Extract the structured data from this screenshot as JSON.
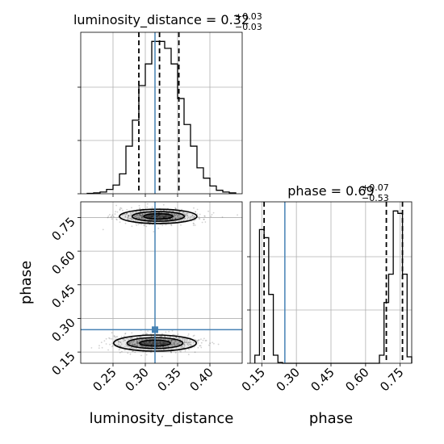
{
  "chart_data": [
    {
      "id": "hist-luminosity",
      "type": "histogram",
      "title": {
        "lhs": "luminosity_distance = 0.32",
        "sup": "+0.03",
        "sub": "−0.03"
      },
      "xlim": [
        0.2,
        0.45
      ],
      "bins": [
        0.21,
        0.22,
        0.23,
        0.24,
        0.25,
        0.26,
        0.27,
        0.28,
        0.29,
        0.3,
        0.31,
        0.32,
        0.33,
        0.34,
        0.35,
        0.36,
        0.37,
        0.38,
        0.39,
        0.4,
        0.41,
        0.42,
        0.43,
        0.44
      ],
      "counts": [
        0.5,
        1,
        2,
        5,
        10,
        23,
        55,
        85,
        125,
        150,
        176,
        176,
        168,
        150,
        110,
        80,
        55,
        30,
        18,
        9,
        4,
        2,
        1
      ],
      "quantiles": [
        0.29,
        0.322,
        0.352
      ],
      "truth": 0.315
    },
    {
      "id": "hist-phase",
      "type": "histogram",
      "title": {
        "lhs": "phase = 0.69",
        "sup": "+0.07",
        "sub": "−0.53"
      },
      "xlim": [
        0.1,
        0.8
      ],
      "xticks": [
        "0.15",
        "0.30",
        "0.45",
        "0.60",
        "0.75"
      ],
      "xtick_values": [
        0.15,
        0.3,
        0.45,
        0.6,
        0.75
      ],
      "xlabel": "phase",
      "bins": [
        0.12,
        0.14,
        0.16,
        0.18,
        0.2,
        0.22,
        0.24,
        0.26,
        0.28,
        0.3,
        0.32,
        0.34,
        0.36,
        0.38,
        0.4,
        0.42,
        0.44,
        0.46,
        0.48,
        0.5,
        0.52,
        0.54,
        0.56,
        0.58,
        0.6,
        0.62,
        0.64,
        0.66,
        0.68,
        0.7,
        0.72,
        0.74,
        0.76,
        0.78,
        0.8
      ],
      "counts": [
        10,
        165,
        155,
        85,
        10,
        1,
        0,
        0,
        0,
        0,
        0,
        0,
        0,
        0,
        0,
        0,
        0,
        0,
        0,
        0,
        0,
        0,
        0,
        0,
        0,
        0,
        0,
        10,
        75,
        110,
        188,
        185,
        110,
        8
      ],
      "quantiles": [
        0.16,
        0.69,
        0.76
      ],
      "truth": 0.25
    },
    {
      "id": "corner-2d",
      "type": "scatter",
      "xlabel": "luminosity_distance",
      "ylabel": "phase",
      "xlim": [
        0.2,
        0.45
      ],
      "ylim": [
        0.1,
        0.82
      ],
      "xticks": [
        "0.25",
        "0.30",
        "0.35",
        "0.40"
      ],
      "xtick_values": [
        0.25,
        0.3,
        0.35,
        0.4
      ],
      "yticks": [
        "0.15",
        "0.30",
        "0.45",
        "0.60",
        "0.75"
      ],
      "ytick_values": [
        0.15,
        0.3,
        0.45,
        0.6,
        0.75
      ],
      "modes": [
        {
          "x": 0.32,
          "y": 0.755,
          "sx": 0.03,
          "sy": 0.016
        },
        {
          "x": 0.315,
          "y": 0.19,
          "sx": 0.032,
          "sy": 0.018
        }
      ],
      "contour_levels": [
        0.12,
        0.4,
        0.85
      ],
      "truth": {
        "x": 0.315,
        "y": 0.25
      }
    }
  ]
}
